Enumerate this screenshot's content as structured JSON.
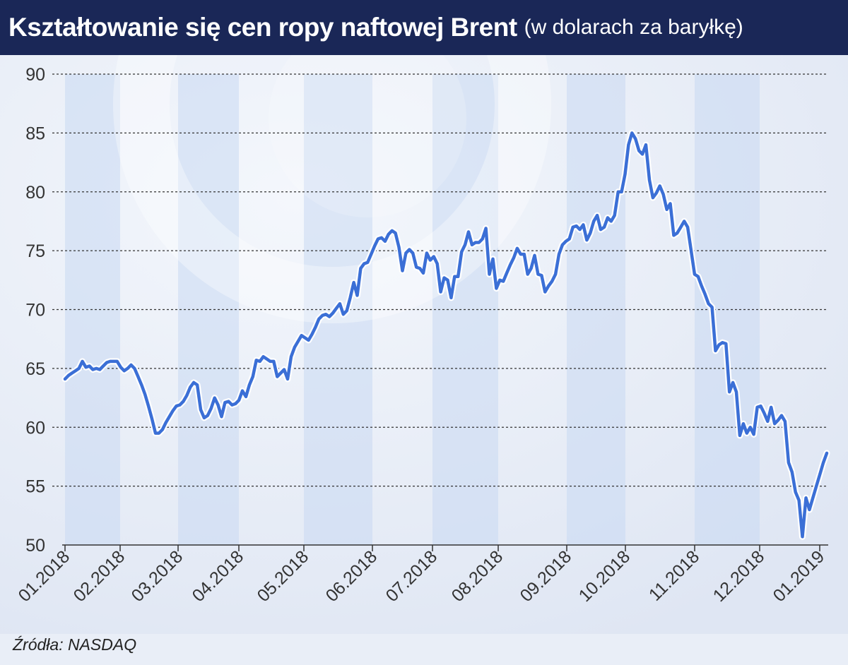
{
  "header": {
    "title": "Kształtowanie się cen ropy naftowej Brent",
    "subtitle": "(w dolarach za baryłkę)"
  },
  "footer": {
    "source": "Źródła: NASDAQ"
  },
  "colors": {
    "line": "#3b6fd6",
    "header_bg": "#1a2757",
    "grid": "#333333"
  },
  "chart_data": {
    "type": "line",
    "title": "Kształtowanie się cen ropy naftowej Brent",
    "subtitle": "(w dolarach za baryłkę)",
    "xlabel": "",
    "ylabel": "",
    "ylim": [
      50,
      90
    ],
    "yticks": [
      50,
      55,
      60,
      65,
      70,
      75,
      80,
      85,
      90
    ],
    "grid": "horizontal dashed",
    "legend": "none",
    "month_labels": [
      "01.2018",
      "02.2018",
      "03.2018",
      "04.2018",
      "05.2018",
      "06.2018",
      "07.2018",
      "08.2018",
      "09.2018",
      "10.2018",
      "11.2018",
      "12.2018",
      "01.2019"
    ],
    "series": [
      {
        "values": [
          64.1,
          64.4,
          64.6,
          64.8,
          65.0,
          65.6,
          65.1,
          65.2,
          64.9,
          65.0,
          64.9,
          65.2,
          65.5,
          65.6,
          65.6,
          65.6,
          65.1,
          64.8,
          65.0,
          65.3,
          65.0,
          64.3,
          63.6,
          62.8,
          61.8,
          60.7,
          59.5,
          59.5,
          59.8,
          60.4,
          60.9,
          61.4,
          61.8,
          61.9,
          62.2,
          62.7,
          63.4,
          63.8,
          63.6,
          61.5,
          60.8,
          61.0,
          61.6,
          62.5,
          61.9,
          60.9,
          62.1,
          62.2,
          61.9,
          62.0,
          62.3,
          63.1,
          62.6,
          63.6,
          64.3,
          65.7,
          65.6,
          66.0,
          65.8,
          65.6,
          65.6,
          64.3,
          64.6,
          64.9,
          64.1,
          66.0,
          66.8,
          67.3,
          67.8,
          67.6,
          67.4,
          67.9,
          68.5,
          69.2,
          69.5,
          69.6,
          69.4,
          69.7,
          70.1,
          70.5,
          69.6,
          69.9,
          71.0,
          72.3,
          71.2,
          73.5,
          73.9,
          74.0,
          74.7,
          75.4,
          76.0,
          76.1,
          75.8,
          76.4,
          76.7,
          76.5,
          75.3,
          73.3,
          74.8,
          75.1,
          74.8,
          73.6,
          73.5,
          73.1,
          74.8,
          74.2,
          74.5,
          73.9,
          71.5,
          72.7,
          72.5,
          71.0,
          72.8,
          72.8,
          74.9,
          75.5,
          76.6,
          75.5,
          75.7,
          75.7,
          76.0,
          76.9,
          73.0,
          74.3,
          71.8,
          72.5,
          72.4,
          73.1,
          73.8,
          74.4,
          75.2,
          74.7,
          74.7,
          73.0,
          73.5,
          74.6,
          73.0,
          72.9,
          71.5,
          72.0,
          72.4,
          73.0,
          74.7,
          75.5,
          75.8,
          76.0,
          77.0,
          77.1,
          76.8,
          77.2,
          75.9,
          76.5,
          77.5,
          78.0,
          76.8,
          77.0,
          77.8,
          77.5,
          78.0,
          80.0,
          80.0,
          81.5,
          84.0,
          85.0,
          84.5,
          83.5,
          83.2,
          84.0,
          81.0,
          79.5,
          79.9,
          80.5,
          79.8,
          78.5,
          79.0,
          76.3,
          76.5,
          77.0,
          77.5,
          77.0,
          75.0,
          73.0,
          72.8,
          72.0,
          71.3,
          70.5,
          70.2,
          66.5,
          67.0,
          67.2,
          67.1,
          63.0,
          63.8,
          63.0,
          59.3,
          60.3,
          59.5,
          60.0,
          59.4,
          61.7,
          61.8,
          61.2,
          60.5,
          61.7,
          60.3,
          60.6,
          61.0,
          60.5,
          57.0,
          56.2,
          54.5,
          53.8,
          50.7,
          54.0,
          53.0,
          54.0,
          55.0,
          56.0,
          57.0,
          57.8
        ]
      }
    ]
  }
}
